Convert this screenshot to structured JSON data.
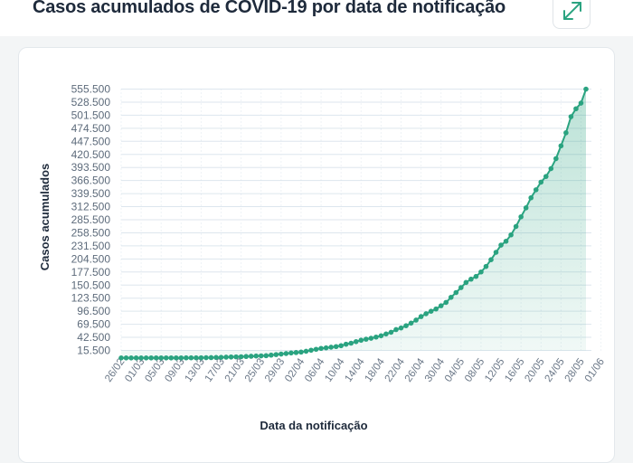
{
  "header": {
    "title": "Casos acumulados de COVID-19 por data de notificação",
    "expand_icon": "expand-arrows-icon"
  },
  "colors": {
    "accent": "#2aa380",
    "area_fill": "#cdeee3",
    "grid": "#dde6ee",
    "title_text": "#1e2a3b"
  },
  "chart_data": {
    "type": "area",
    "title": "Casos acumulados de COVID-19 por data de notificação",
    "xlabel": "Data da notificação",
    "ylabel": "Casos acumulados",
    "ylim": [
      0,
      555500
    ],
    "yticks": [
      15500,
      42500,
      69500,
      96500,
      123500,
      150500,
      177500,
      204500,
      231500,
      258500,
      285500,
      312500,
      339500,
      366500,
      393500,
      420500,
      447500,
      474500,
      501500,
      528500,
      555500
    ],
    "ytick_labels": [
      "15.500",
      "42.500",
      "69.500",
      "96.500",
      "123.500",
      "150.500",
      "177.500",
      "204.500",
      "231.500",
      "258.500",
      "285.500",
      "312.500",
      "339.500",
      "366.500",
      "393.500",
      "420.500",
      "447.500",
      "474.500",
      "501.500",
      "528.500",
      "555.500"
    ],
    "xtick_labels": [
      "26/02",
      "01/03",
      "05/03",
      "09/03",
      "13/03",
      "17/03",
      "21/03",
      "25/03",
      "29/03",
      "02/04",
      "06/04",
      "10/04",
      "14/04",
      "18/04",
      "22/04",
      "26/04",
      "30/04",
      "04/05",
      "08/05",
      "12/05",
      "16/05",
      "20/05",
      "24/05",
      "28/05",
      "01/06"
    ],
    "grid": true,
    "x_start": "26/02",
    "x_step_days": 1,
    "values": [
      1,
      1,
      2,
      2,
      3,
      4,
      13,
      13,
      19,
      25,
      31,
      52,
      78,
      121,
      200,
      234,
      291,
      428,
      621,
      904,
      1128,
      1546,
      1891,
      2201,
      2433,
      2915,
      3417,
      3903,
      4256,
      4579,
      5717,
      6836,
      7910,
      9056,
      10278,
      11130,
      12056,
      13717,
      15927,
      17857,
      19638,
      20727,
      22169,
      23430,
      25262,
      28320,
      30425,
      33682,
      36599,
      38654,
      40581,
      43079,
      45757,
      49492,
      52995,
      58509,
      61888,
      66501,
      71886,
      78162,
      85380,
      91299,
      96396,
      101147,
      107780,
      114715,
      125218,
      135106,
      145328,
      155939,
      162699,
      168331,
      177589,
      188974,
      202918,
      218223,
      233142,
      241080,
      254220,
      271628,
      291579,
      310087,
      330890,
      347398,
      363211,
      374898,
      391222,
      411821,
      438238,
      465166,
      498440,
      514849,
      526447,
      555383
    ]
  },
  "footer": {
    "axis_label": "Data da notificação"
  }
}
